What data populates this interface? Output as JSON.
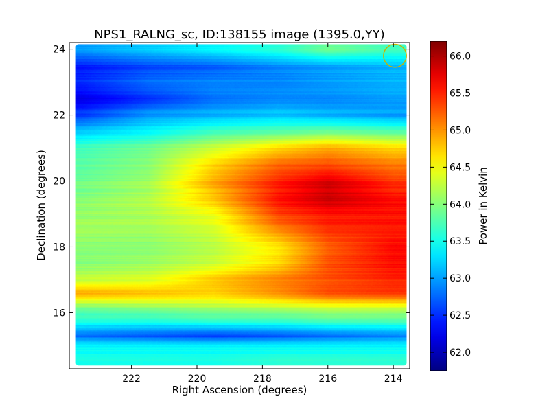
{
  "chart_data": {
    "type": "heatmap",
    "title": "NPS1_RALNG_sc, ID:138155 image (1395.0,YY)",
    "xlabel": "Right Ascension (degrees)",
    "ylabel": "Declination (degrees)",
    "xlim": [
      223.9,
      213.5
    ],
    "ylim": [
      14.3,
      24.2
    ],
    "x_ticks": [
      222,
      220,
      218,
      216,
      214
    ],
    "y_ticks": [
      16,
      18,
      20,
      22,
      24
    ],
    "colorbar": {
      "label": "Power in Kelvin",
      "range": [
        61.75,
        66.2
      ],
      "ticks": [
        "62.0",
        "62.5",
        "63.0",
        "63.5",
        "64.0",
        "64.5",
        "65.0",
        "65.5",
        "66.0"
      ],
      "tick_values": [
        62.0,
        62.5,
        63.0,
        63.5,
        64.0,
        64.5,
        65.0,
        65.5,
        66.0
      ],
      "colormap": "jet"
    },
    "beam_marker": {
      "ra": 213.95,
      "dec": 23.8,
      "radius_deg": 0.35,
      "color": "#c8b400"
    },
    "data_extent": {
      "ra": [
        223.7,
        213.6
      ],
      "dec": [
        14.4,
        24.15
      ]
    },
    "ra_grid": [
      223.5,
      221.5,
      219.5,
      217.5,
      216.0,
      214.0
    ],
    "dec_grid": [
      14.5,
      15.0,
      15.3,
      15.8,
      16.2,
      16.6,
      17.0,
      17.5,
      18.0,
      18.5,
      19.0,
      19.5,
      20.0,
      20.5,
      21.0,
      21.5,
      22.0,
      22.5,
      23.0,
      23.5,
      24.0
    ],
    "values": [
      [
        63.5,
        63.5,
        63.5,
        63.6,
        63.6,
        63.6
      ],
      [
        63.4,
        63.4,
        63.4,
        63.4,
        63.4,
        63.4
      ],
      [
        62.8,
        62.7,
        62.6,
        62.7,
        62.8,
        62.9
      ],
      [
        63.6,
        63.6,
        63.7,
        63.7,
        63.8,
        63.8
      ],
      [
        64.0,
        64.1,
        64.2,
        64.3,
        64.4,
        64.4
      ],
      [
        64.9,
        64.8,
        64.7,
        65.0,
        65.3,
        65.4
      ],
      [
        64.3,
        64.4,
        64.8,
        65.1,
        65.3,
        65.5
      ],
      [
        64.0,
        64.1,
        64.3,
        64.7,
        65.3,
        65.6
      ],
      [
        64.0,
        64.0,
        64.2,
        64.6,
        65.2,
        65.6
      ],
      [
        64.1,
        64.1,
        64.3,
        65.0,
        65.4,
        65.5
      ],
      [
        64.1,
        64.2,
        64.5,
        65.4,
        65.6,
        65.6
      ],
      [
        64.0,
        64.2,
        64.8,
        65.6,
        65.9,
        65.6
      ],
      [
        63.9,
        64.1,
        64.9,
        65.5,
        65.8,
        65.4
      ],
      [
        63.8,
        64.0,
        64.7,
        65.2,
        65.3,
        65.1
      ],
      [
        63.7,
        63.9,
        64.3,
        64.7,
        64.9,
        64.7
      ],
      [
        63.2,
        63.4,
        63.7,
        63.8,
        63.9,
        63.8
      ],
      [
        62.6,
        63.0,
        63.1,
        63.2,
        63.1,
        63.0
      ],
      [
        62.2,
        62.5,
        62.8,
        62.9,
        62.9,
        63.0
      ],
      [
        62.5,
        62.8,
        62.9,
        62.9,
        63.0,
        63.1
      ],
      [
        62.4,
        62.6,
        62.7,
        62.9,
        63.0,
        63.1
      ],
      [
        63.0,
        63.2,
        63.4,
        63.6,
        63.9,
        63.7
      ]
    ]
  }
}
